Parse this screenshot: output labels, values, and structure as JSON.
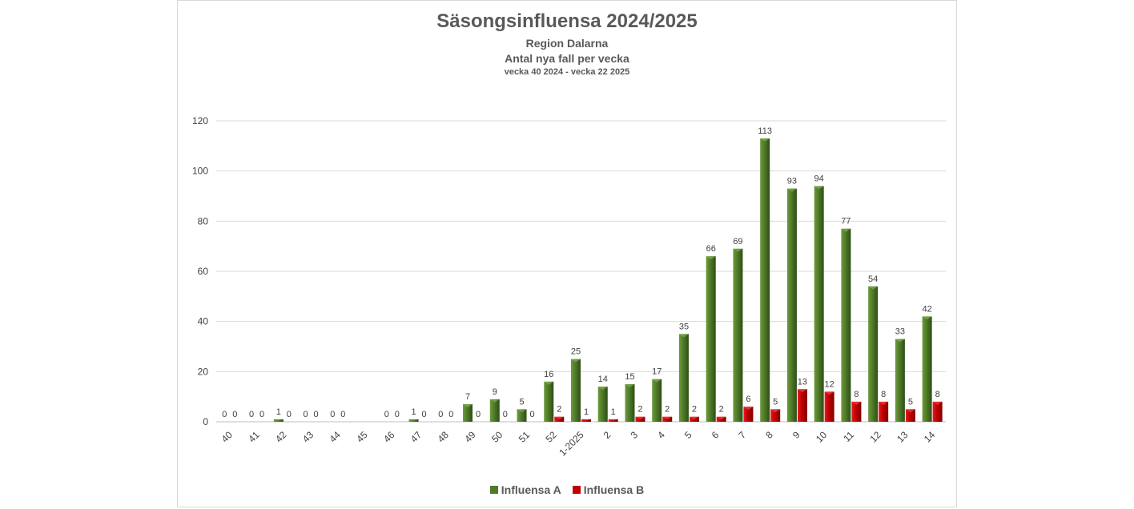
{
  "chart_data": {
    "type": "bar",
    "title": "Säsongsinfluensa 2024/2025",
    "subtitle_lines": [
      "Region Dalarna",
      "Antal nya fall per vecka",
      "vecka 40 2024 - vecka 22 2025"
    ],
    "categories": [
      "40",
      "41",
      "42",
      "43",
      "44",
      "45",
      "46",
      "47",
      "48",
      "49",
      "50",
      "51",
      "52",
      "1-2025",
      "2",
      "3",
      "4",
      "5",
      "6",
      "7",
      "8",
      "9",
      "10",
      "11",
      "12",
      "13",
      "14"
    ],
    "series": [
      {
        "name": "Influensa A",
        "color": "#4f7a28",
        "values": [
          0,
          0,
          1,
          0,
          0,
          null,
          0,
          1,
          0,
          7,
          9,
          5,
          16,
          25,
          14,
          15,
          17,
          35,
          66,
          69,
          113,
          93,
          94,
          77,
          54,
          33,
          42
        ]
      },
      {
        "name": "Influensa B",
        "color": "#c00000",
        "values": [
          0,
          0,
          0,
          0,
          0,
          null,
          0,
          0,
          0,
          0,
          0,
          0,
          2,
          1,
          1,
          2,
          2,
          2,
          2,
          6,
          5,
          13,
          12,
          8,
          8,
          5,
          8
        ]
      }
    ],
    "ylim": [
      0,
      120
    ],
    "yticks": [
      0,
      20,
      40,
      60,
      80,
      100,
      120
    ],
    "grid": true,
    "legend_position": "bottom"
  }
}
